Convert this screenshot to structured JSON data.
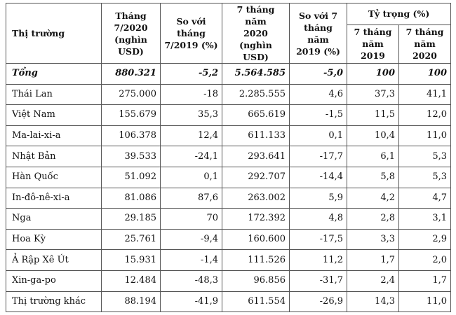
{
  "header": {
    "market": "Thị trường",
    "month_value": [
      "Tháng",
      "7/2020",
      "(nghìn USD)"
    ],
    "vs_month": [
      "So với tháng",
      "7/2019 (%)"
    ],
    "seven_month_value": [
      "7 tháng năm",
      "2020",
      "(nghìn USD)"
    ],
    "vs_seven_month": [
      "So với 7",
      "tháng năm",
      "2019 (%)"
    ],
    "share": "Tỷ trọng (%)",
    "share_2019": [
      "7 tháng",
      "năm 2019"
    ],
    "share_2020": [
      "7 tháng",
      "năm 2020"
    ]
  },
  "rows": [
    {
      "market": "Tổng",
      "month": "880.321",
      "vs_month": "-5,2",
      "seven_month": "5.564.585",
      "vs_seven": "-5,0",
      "share_2019": "100",
      "share_2020": "100"
    },
    {
      "market": "Thái Lan",
      "month": "275.000",
      "vs_month": "-18",
      "seven_month": "2.285.555",
      "vs_seven": "4,6",
      "share_2019": "37,3",
      "share_2020": "41,1"
    },
    {
      "market": "Việt Nam",
      "month": "155.679",
      "vs_month": "35,3",
      "seven_month": "665.619",
      "vs_seven": "-1,5",
      "share_2019": "11,5",
      "share_2020": "12,0"
    },
    {
      "market": "Ma-lai-xi-a",
      "month": "106.378",
      "vs_month": "12,4",
      "seven_month": "611.133",
      "vs_seven": "0,1",
      "share_2019": "10,4",
      "share_2020": "11,0"
    },
    {
      "market": "Nhật Bản",
      "month": "39.533",
      "vs_month": "-24,1",
      "seven_month": "293.641",
      "vs_seven": "-17,7",
      "share_2019": "6,1",
      "share_2020": "5,3"
    },
    {
      "market": "Hàn Quốc",
      "month": "51.092",
      "vs_month": "0,1",
      "seven_month": "292.707",
      "vs_seven": "-14,4",
      "share_2019": "5,8",
      "share_2020": "5,3"
    },
    {
      "market": "In-đô-nê-xi-a",
      "month": "81.086",
      "vs_month": "87,6",
      "seven_month": "263.002",
      "vs_seven": "5,9",
      "share_2019": "4,2",
      "share_2020": "4,7"
    },
    {
      "market": "Nga",
      "month": "29.185",
      "vs_month": "70",
      "seven_month": "172.392",
      "vs_seven": "4,8",
      "share_2019": "2,8",
      "share_2020": "3,1"
    },
    {
      "market": "Hoa Kỳ",
      "month": "25.761",
      "vs_month": "-9,4",
      "seven_month": "160.600",
      "vs_seven": "-17,5",
      "share_2019": "3,3",
      "share_2020": "2,9"
    },
    {
      "market": "Ả Rập Xê Út",
      "month": "15.931",
      "vs_month": "-1,4",
      "seven_month": "111.526",
      "vs_seven": "11,2",
      "share_2019": "1,7",
      "share_2020": "2,0"
    },
    {
      "market": "Xin-ga-po",
      "month": "12.484",
      "vs_month": "-48,3",
      "seven_month": "96.856",
      "vs_seven": "-31,7",
      "share_2019": "2,4",
      "share_2020": "1,7"
    },
    {
      "market": "Thị trường khác",
      "month": "88.194",
      "vs_month": "-41,9",
      "seven_month": "611.554",
      "vs_seven": "-26,9",
      "share_2019": "14,3",
      "share_2020": "11,0"
    }
  ]
}
